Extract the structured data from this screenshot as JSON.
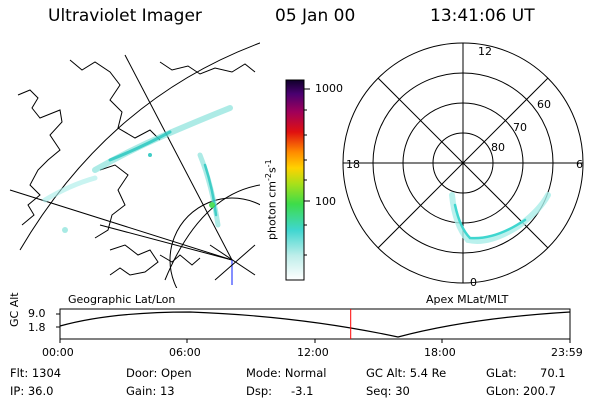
{
  "header": {
    "instrument": "Ultraviolet Imager",
    "date": "05 Jan 00",
    "time": "13:41:06 UT"
  },
  "colorbar": {
    "label": "photon cm",
    "label_sup1": "-2",
    "label_mid": "s",
    "label_sup2": "-1",
    "ticks": [
      "1000",
      "100"
    ]
  },
  "polar_plot": {
    "mlt_labels": [
      "12",
      "18",
      "6",
      "0"
    ],
    "lat_labels": [
      "60",
      "70",
      "80"
    ],
    "caption": "Apex MLat/MLT"
  },
  "geo_map": {
    "caption": "Geographic Lat/Lon"
  },
  "altitude_plot": {
    "ylabel": "GC Alt",
    "yticks": [
      "9.0",
      "1.8"
    ],
    "xticks": [
      "00:00",
      "06:00",
      "12:00",
      "18:00",
      "23:59"
    ],
    "current_marker_hour": 13.68
  },
  "info": {
    "flt": "Flt: 1304",
    "ip": "IP: 36.0",
    "door": "Door: Open",
    "gain": "Gain: 13",
    "mode": "Mode: Normal",
    "dsp": "Dsp:",
    "dsp_value": "-3.1",
    "gc_alt": "GC Alt: 5.4 Re",
    "seq": "Seq: 30",
    "glat": "GLat:",
    "glat_value": "70.1",
    "glon": "GLon: 200.7"
  },
  "colors": {
    "marker": "#ff0000",
    "line": "#000000"
  }
}
